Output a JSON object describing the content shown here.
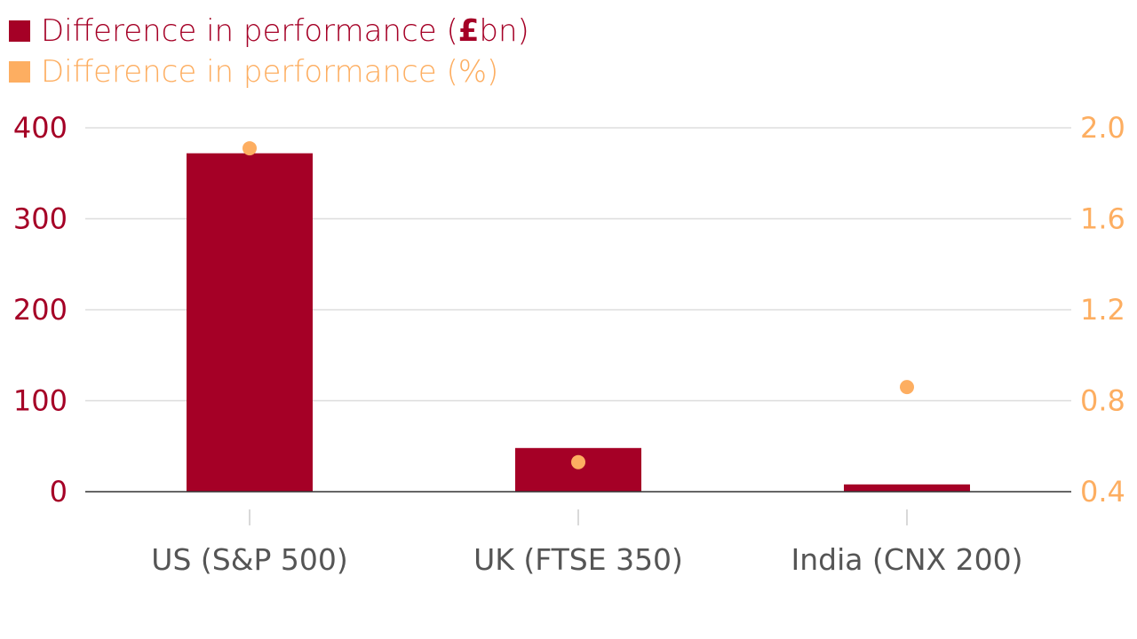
{
  "chart_data": {
    "type": "bar",
    "categories": [
      "US (S&P 500)",
      "UK (FTSE 350)",
      "India (CNX 200)"
    ],
    "series": [
      {
        "name": "Difference in performance (£bn)",
        "name_prefix": "Difference in performance (",
        "name_currency": "£",
        "name_suffix": "bn)",
        "chart": "bar",
        "axis": "left",
        "color": "#a50026",
        "values": [
          372,
          48,
          8
        ]
      },
      {
        "name": "Difference in performance (%)",
        "chart": "scatter",
        "axis": "right",
        "color": "#fdae61",
        "values": [
          1.91,
          0.53,
          0.86
        ]
      }
    ],
    "y_left": {
      "ylim": [
        0,
        400
      ],
      "ticks": [
        "0",
        "100",
        "200",
        "300",
        "400"
      ],
      "color": "#a50026"
    },
    "y_right": {
      "ylim": [
        0.4,
        2.0
      ],
      "ticks": [
        "0.4",
        "0.8",
        "1.2",
        "1.6",
        "2.0"
      ],
      "color": "#fdae61"
    },
    "grid": true,
    "legend_position": "top-left",
    "title": "",
    "xlabel": "",
    "ylabel": ""
  }
}
